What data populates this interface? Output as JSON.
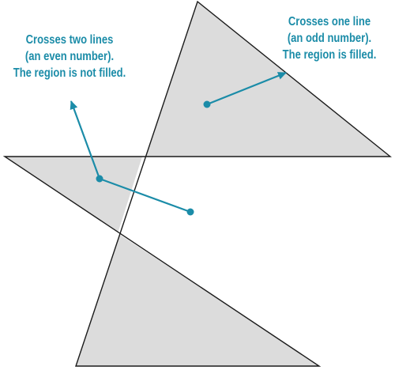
{
  "annotations": {
    "even": {
      "lines": [
        "Crosses two lines",
        "(an even number).",
        "The region is not filled."
      ]
    },
    "odd": {
      "lines": [
        "Crosses one line",
        "(an odd number).",
        "The region is filled."
      ]
    }
  },
  "colors": {
    "star_fill": "#dcdcdc",
    "star_stroke": "#1a1a1a",
    "annotation": "#1b8ca8",
    "center_region": "#ffffff"
  }
}
